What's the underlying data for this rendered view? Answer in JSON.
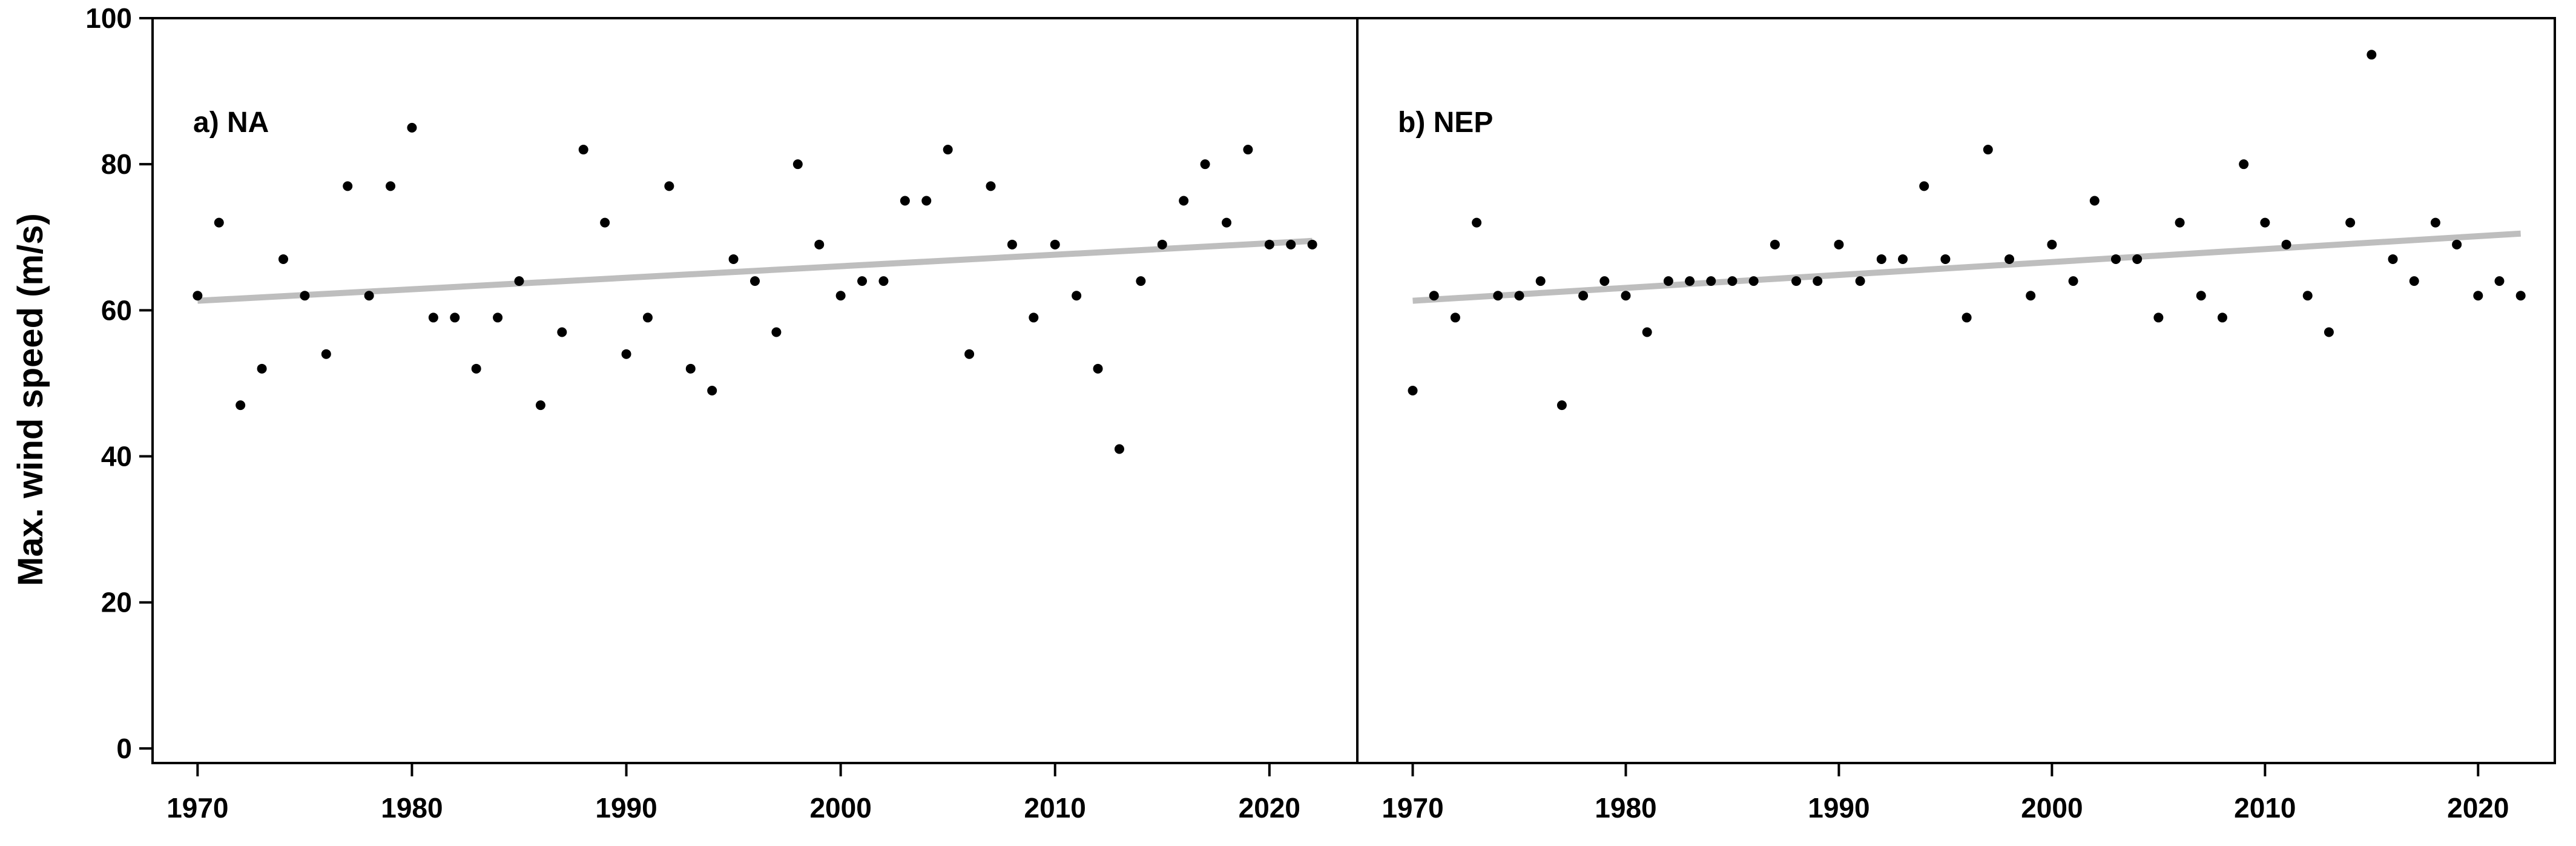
{
  "chart_data": {
    "type": "scatter",
    "ylabel": "Max. wind speed (m/s)",
    "ylim": [
      -2,
      100
    ],
    "yticks": [
      0,
      20,
      40,
      60,
      80,
      100
    ],
    "colors": {
      "points": "#000000",
      "trend": "#bebebe",
      "frame": "#000000"
    },
    "grid": false,
    "panels": [
      {
        "label": "a) NA",
        "xlim": [
          1967.9,
          2024.1
        ],
        "xticks": [
          1970,
          1980,
          1990,
          2000,
          2010,
          2020
        ],
        "trend": {
          "x": [
            1970,
            2022
          ],
          "y": [
            61.3,
            69.5
          ]
        },
        "points": {
          "x": [
            1970,
            1971,
            1972,
            1973,
            1974,
            1975,
            1976,
            1977,
            1978,
            1979,
            1980,
            1981,
            1982,
            1983,
            1984,
            1985,
            1986,
            1987,
            1988,
            1989,
            1990,
            1991,
            1992,
            1993,
            1994,
            1995,
            1996,
            1997,
            1998,
            1999,
            2000,
            2001,
            2002,
            2003,
            2004,
            2005,
            2006,
            2007,
            2008,
            2009,
            2010,
            2011,
            2012,
            2013,
            2014,
            2015,
            2016,
            2017,
            2018,
            2019,
            2020,
            2021,
            2022
          ],
          "y": [
            62,
            72,
            47,
            52,
            67,
            62,
            54,
            77,
            62,
            77,
            85,
            59,
            59,
            52,
            59,
            64,
            47,
            57,
            82,
            72,
            54,
            59,
            77,
            52,
            49,
            67,
            64,
            57,
            80,
            69,
            62,
            64,
            64,
            75,
            75,
            82,
            54,
            77,
            69,
            59,
            69,
            62,
            52,
            41,
            64,
            69,
            75,
            80,
            72,
            82,
            69,
            69,
            69
          ]
        }
      },
      {
        "label": "b) NEP",
        "xlim": [
          1967.4,
          2023.6
        ],
        "xticks": [
          1970,
          1980,
          1990,
          2000,
          2010,
          2020
        ],
        "trend": {
          "x": [
            1970,
            2022
          ],
          "y": [
            61.3,
            70.5
          ]
        },
        "points": {
          "x": [
            1970,
            1971,
            1972,
            1973,
            1974,
            1975,
            1976,
            1977,
            1978,
            1979,
            1980,
            1981,
            1982,
            1983,
            1984,
            1985,
            1986,
            1987,
            1988,
            1989,
            1990,
            1991,
            1992,
            1993,
            1994,
            1995,
            1996,
            1997,
            1998,
            1999,
            2000,
            2001,
            2002,
            2003,
            2004,
            2005,
            2006,
            2007,
            2008,
            2009,
            2010,
            2011,
            2012,
            2013,
            2014,
            2015,
            2016,
            2017,
            2018,
            2019,
            2020,
            2021,
            2022
          ],
          "y": [
            49,
            62,
            59,
            72,
            62,
            62,
            64,
            47,
            62,
            64,
            62,
            57,
            64,
            64,
            64,
            64,
            64,
            69,
            64,
            64,
            69,
            64,
            67,
            67,
            77,
            67,
            59,
            82,
            67,
            62,
            69,
            64,
            75,
            67,
            67,
            59,
            72,
            62,
            59,
            80,
            72,
            69,
            62,
            57,
            72,
            95,
            67,
            64,
            72,
            69,
            62,
            64,
            62
          ]
        }
      }
    ]
  }
}
